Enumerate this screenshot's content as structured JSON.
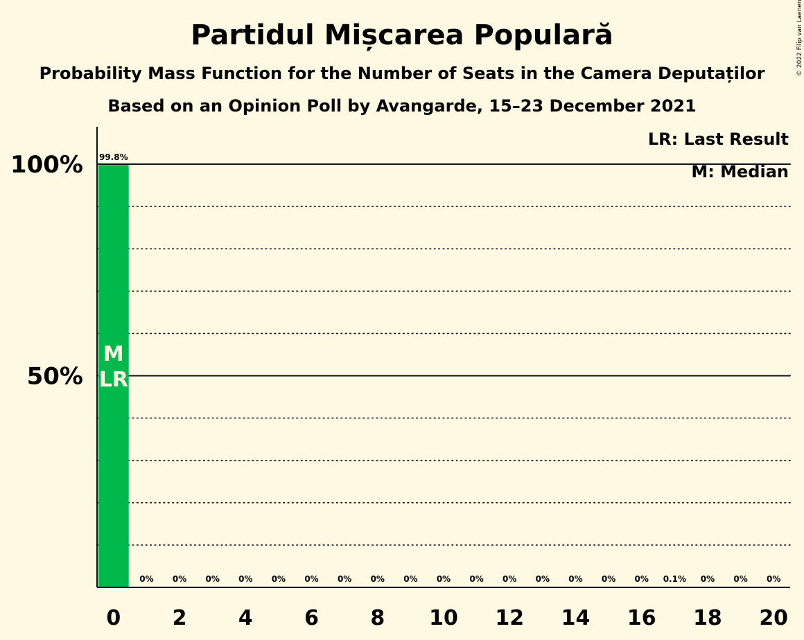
{
  "chart_data": {
    "type": "bar",
    "title": "Partidul Mișcarea Populară",
    "subtitle_1": "Probability Mass Function for the Number of Seats in the Camera Deputaților",
    "subtitle_2": "Based on an Opinion Poll by Avangarde, 15–23 December 2021",
    "copyright": "© 2022 Filip van Laenen",
    "categories": [
      0,
      1,
      2,
      3,
      4,
      5,
      6,
      7,
      8,
      9,
      10,
      11,
      12,
      13,
      14,
      15,
      16,
      17,
      18,
      19,
      20
    ],
    "values": [
      99.8,
      0,
      0,
      0,
      0,
      0,
      0,
      0,
      0,
      0,
      0,
      0,
      0,
      0,
      0,
      0,
      0,
      0.1,
      0,
      0,
      0
    ],
    "value_labels": [
      "99.8%",
      "0%",
      "0%",
      "0%",
      "0%",
      "0%",
      "0%",
      "0%",
      "0%",
      "0%",
      "0%",
      "0%",
      "0%",
      "0%",
      "0%",
      "0%",
      "0%",
      "0.1%",
      "0%",
      "0%",
      "0%"
    ],
    "x_tick_labels": [
      "0",
      "2",
      "4",
      "6",
      "8",
      "10",
      "12",
      "14",
      "16",
      "18",
      "20"
    ],
    "x_tick_values": [
      0,
      2,
      4,
      6,
      8,
      10,
      12,
      14,
      16,
      18,
      20
    ],
    "y_tick_labels": [
      "50%",
      "100%"
    ],
    "y_tick_values": [
      50,
      100
    ],
    "ylim": [
      0,
      110
    ],
    "grid": "dotted every 10%",
    "median": 0,
    "last_result": 0,
    "median_marker": "M",
    "last_result_marker": "LR",
    "legend": [
      "LR: Last Result",
      "M: Median"
    ],
    "legend_position": "top-right",
    "bar_color": "#00b94d",
    "background_color": "#fdf9e3"
  }
}
